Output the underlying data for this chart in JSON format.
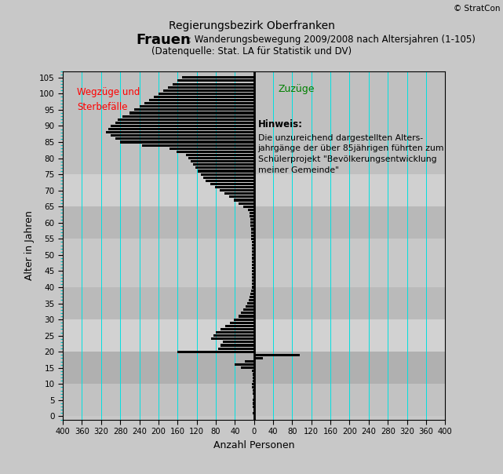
{
  "title_top": "Regierungsbezirk Oberfranken",
  "title_bold": "Frauen",
  "title_normal": ": Wanderungsbewegung 2009/2008 nach Altersjahren (1-105)",
  "title_source": "(Datenquelle: Stat. LA für Statistik und DV)",
  "xlabel": "Anzahl Personen",
  "ylabel": "Alter in Jahren",
  "watermark": "© StratCon",
  "left_label": "Wegzüge und\nSterbefälle",
  "right_label": "Zuzüge",
  "hinweis_title": "Hinweis:",
  "hinweis_body": "Die unzureichend dargestellten Alters-\njahrgänge der über 85jährigen führten zum\nSchülerprojekt \"Bevölkerungsentwicklung\nmeiner Gemeinde\"",
  "xlim": [
    -400,
    400
  ],
  "ylim": [
    -1,
    107
  ],
  "bg_color": "#c8c8c8",
  "ages": [
    1,
    2,
    3,
    4,
    5,
    6,
    7,
    8,
    9,
    10,
    11,
    12,
    13,
    14,
    15,
    16,
    17,
    18,
    19,
    20,
    21,
    22,
    23,
    24,
    25,
    26,
    27,
    28,
    29,
    30,
    31,
    32,
    33,
    34,
    35,
    36,
    37,
    38,
    39,
    40,
    41,
    42,
    43,
    44,
    45,
    46,
    47,
    48,
    49,
    50,
    51,
    52,
    53,
    54,
    55,
    56,
    57,
    58,
    59,
    60,
    61,
    62,
    63,
    64,
    65,
    66,
    67,
    68,
    69,
    70,
    71,
    72,
    73,
    74,
    75,
    76,
    77,
    78,
    79,
    80,
    81,
    82,
    83,
    84,
    85,
    86,
    87,
    88,
    89,
    90,
    91,
    92,
    93,
    94,
    95,
    96,
    97,
    98,
    99,
    100,
    101,
    102,
    103,
    104,
    105
  ],
  "values": [
    -2,
    -1,
    -3,
    -2,
    -2,
    -1,
    -2,
    -3,
    -4,
    -4,
    -3,
    -3,
    -2,
    -4,
    -28,
    -40,
    -20,
    18,
    95,
    -160,
    -75,
    -70,
    -65,
    -90,
    -85,
    -80,
    -70,
    -60,
    -50,
    -42,
    -32,
    -28,
    -22,
    -18,
    -14,
    -11,
    -9,
    -7,
    -6,
    -5,
    -4,
    -4,
    -4,
    -4,
    -4,
    -4,
    -4,
    -4,
    -4,
    -4,
    -5,
    -5,
    -5,
    -5,
    -6,
    -6,
    -6,
    -6,
    -7,
    -7,
    -8,
    -9,
    -10,
    -12,
    -22,
    -32,
    -42,
    -52,
    -62,
    -72,
    -82,
    -92,
    -102,
    -107,
    -112,
    -117,
    -122,
    -127,
    -132,
    -137,
    -142,
    -162,
    -177,
    -235,
    -280,
    -290,
    -300,
    -310,
    -305,
    -300,
    -290,
    -285,
    -275,
    -260,
    -250,
    -240,
    -230,
    -220,
    -210,
    -200,
    -190,
    -180,
    -170,
    -160,
    -150
  ],
  "bar_color": "#000000",
  "xticks": [
    -400,
    -360,
    -320,
    -280,
    -240,
    -200,
    -160,
    -120,
    -80,
    -40,
    0,
    40,
    80,
    120,
    160,
    200,
    240,
    280,
    320,
    360,
    400
  ],
  "yticks": [
    0,
    5,
    10,
    15,
    20,
    25,
    30,
    35,
    40,
    45,
    50,
    55,
    60,
    65,
    70,
    75,
    80,
    85,
    90,
    95,
    100,
    105
  ],
  "grid_color": "#00e0e0",
  "bands": [
    [
      0,
      10,
      "#c2c2c2"
    ],
    [
      10,
      20,
      "#b0b0b0"
    ],
    [
      20,
      30,
      "#d2d2d2"
    ],
    [
      30,
      40,
      "#bababa"
    ],
    [
      40,
      55,
      "#c8c8c8"
    ],
    [
      55,
      65,
      "#b8b8b8"
    ],
    [
      65,
      75,
      "#d0d0d0"
    ],
    [
      75,
      107,
      "#c0c0c0"
    ]
  ]
}
